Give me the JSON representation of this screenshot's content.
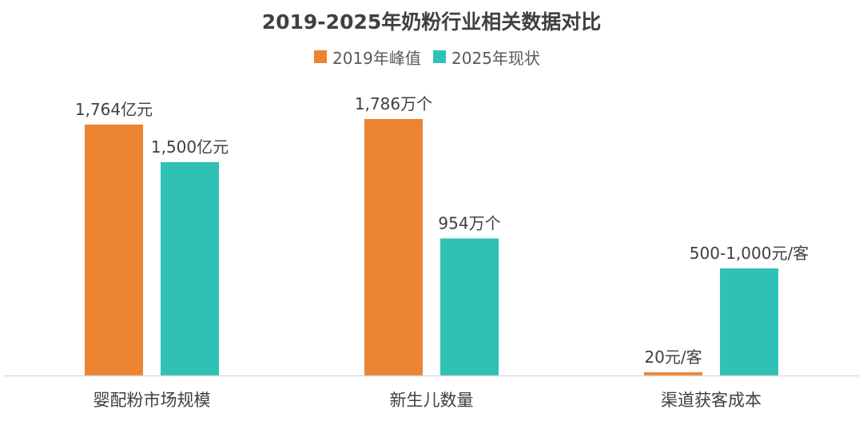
{
  "chart_data": {
    "type": "bar",
    "title": "2019-2025年奶粉行业相关数据对比",
    "legend_position": "top",
    "grid": false,
    "categories": [
      "婴配粉市场规模",
      "新生儿数量",
      "渠道获客成本"
    ],
    "series": [
      {
        "name": "2019年峰值",
        "color": "#ED8431",
        "values": [
          1764,
          1786,
          20
        ],
        "labels": [
          "1,764亿元",
          "1,786万个",
          "20元/客"
        ]
      },
      {
        "name": "2025年现状",
        "color": "#2FC1B5",
        "values": [
          1500,
          954,
          750
        ],
        "labels": [
          "1,500亿元",
          "954万个",
          "500-1,000元/客"
        ]
      }
    ],
    "note": "Each category is measured in its own unit; bars are scaled per category."
  }
}
